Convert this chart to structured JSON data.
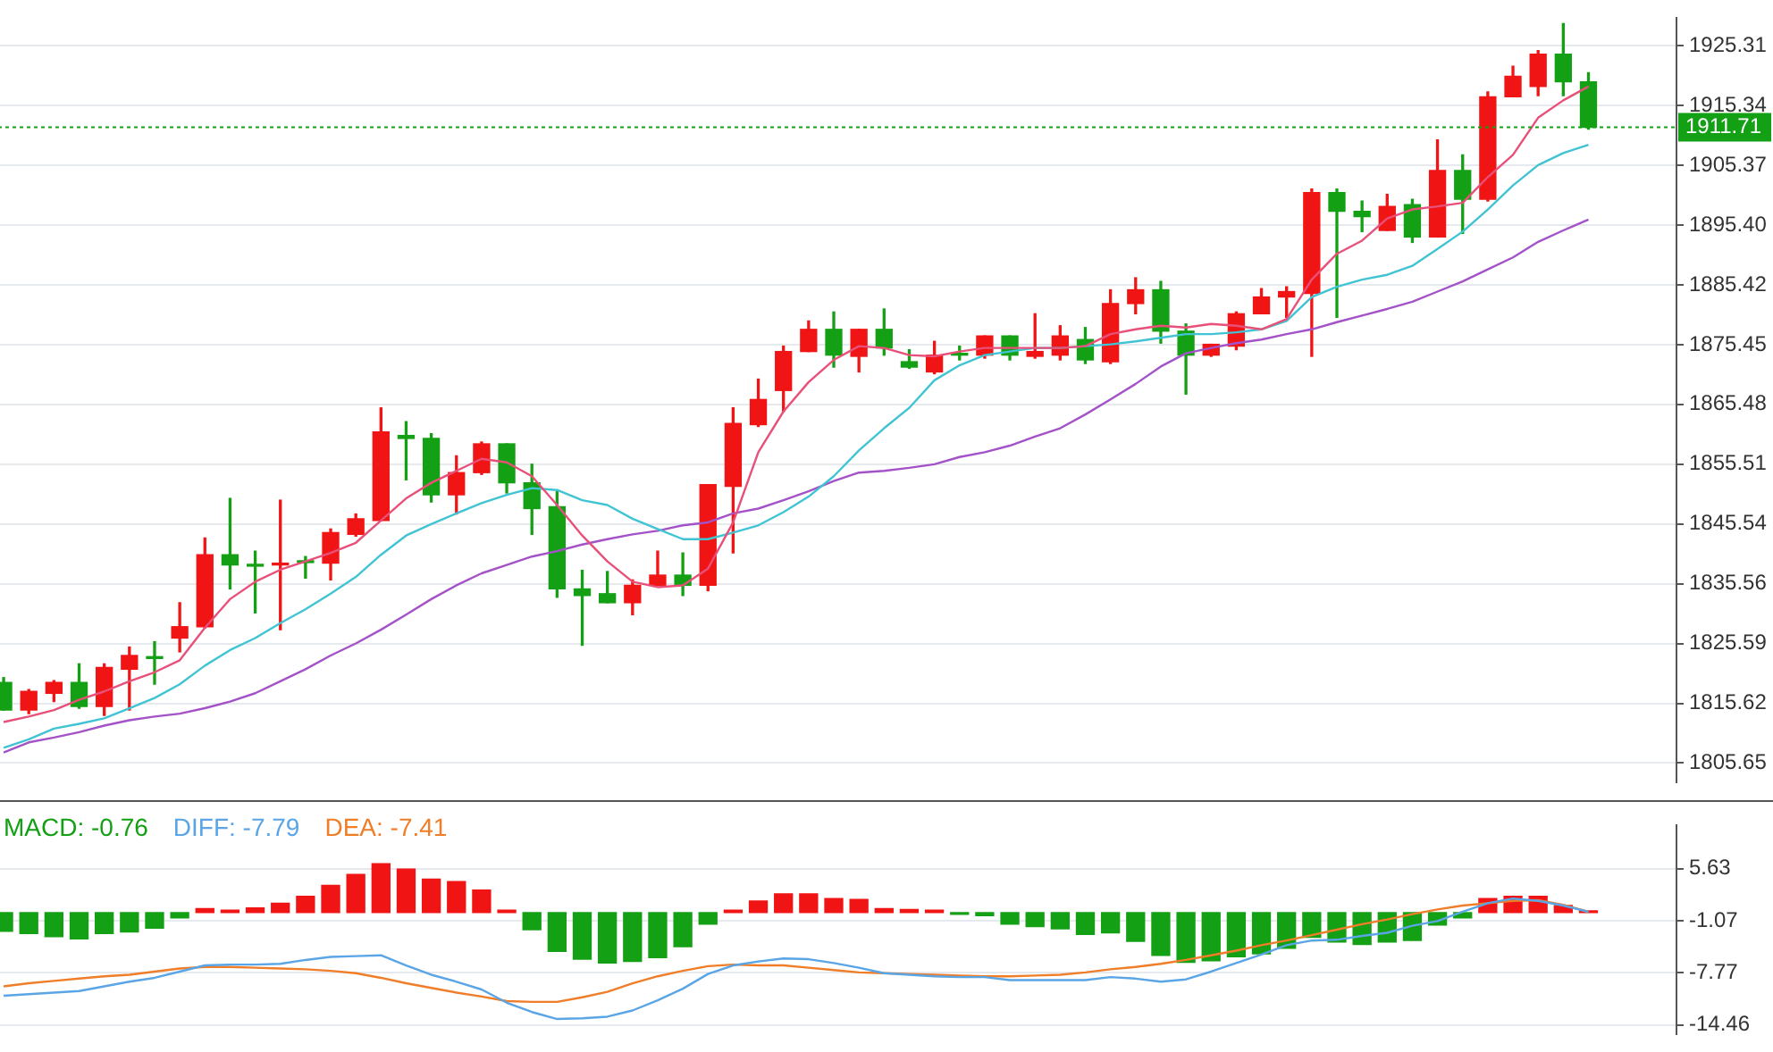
{
  "chart_data": [
    {
      "type": "candlestick",
      "categories": [
        null,
        null,
        null,
        null,
        null,
        null,
        null,
        null,
        null,
        null,
        null,
        null,
        null,
        null,
        null,
        null,
        null,
        null,
        null,
        null,
        null,
        null,
        null,
        null,
        null,
        null,
        null,
        null,
        null,
        null,
        null,
        null,
        null,
        null,
        null,
        null,
        null,
        null,
        null,
        null,
        null,
        null,
        null,
        null,
        null,
        null,
        null,
        null,
        null,
        null,
        null,
        null,
        null,
        null,
        null,
        null,
        null,
        null,
        null,
        null,
        null,
        null,
        null,
        null,
        null,
        null,
        null
      ],
      "ohlc": [
        [
          1819.1,
          1819.9,
          1814.5,
          1814.5
        ],
        [
          1814.5,
          1817.9,
          1813.9,
          1817.6
        ],
        [
          1817.3,
          1819.4,
          1815.9,
          1819.1
        ],
        [
          1819.1,
          1822.2,
          1814.8,
          1815.1
        ],
        [
          1815.1,
          1822.2,
          1813.6,
          1821.6
        ],
        [
          1821.3,
          1825.0,
          1814.5,
          1823.6
        ],
        [
          1823.4,
          1825.9,
          1818.8,
          1823.1
        ],
        [
          1826.5,
          1832.4,
          1824.2,
          1828.4
        ],
        [
          1828.4,
          1843.2,
          1828.2,
          1840.4
        ],
        [
          1840.4,
          1849.8,
          1834.7,
          1838.7
        ],
        [
          1838.8,
          1841.0,
          1830.7,
          1838.5
        ],
        [
          1838.7,
          1849.5,
          1827.9,
          1839.0
        ],
        [
          1839.4,
          1840.1,
          1836.5,
          1839.1
        ],
        [
          1839.0,
          1844.7,
          1836.2,
          1844.1
        ],
        [
          1843.8,
          1847.2,
          1843.5,
          1846.4
        ],
        [
          1846.1,
          1864.9,
          1846.1,
          1860.9
        ],
        [
          1860.3,
          1862.6,
          1852.9,
          1859.8
        ],
        [
          1859.8,
          1860.6,
          1849.2,
          1850.4
        ],
        [
          1850.4,
          1856.9,
          1847.2,
          1854.1
        ],
        [
          1854.1,
          1859.2,
          1853.8,
          1858.9
        ],
        [
          1858.9,
          1858.9,
          1850.7,
          1852.4
        ],
        [
          1852.4,
          1855.5,
          1843.8,
          1848.1
        ],
        [
          1848.4,
          1850.9,
          1833.3,
          1834.7
        ],
        [
          1834.7,
          1837.8,
          1825.3,
          1833.6
        ],
        [
          1833.9,
          1837.6,
          1832.4,
          1832.4
        ],
        [
          1832.4,
          1836.2,
          1830.4,
          1835.3
        ],
        [
          1835.3,
          1841.0,
          1835.3,
          1837.0
        ],
        [
          1837.0,
          1840.7,
          1833.6,
          1835.3
        ],
        [
          1835.3,
          1852.1,
          1834.4,
          1852.1
        ],
        [
          1851.8,
          1864.9,
          1840.7,
          1862.3
        ],
        [
          1862.1,
          1869.7,
          1861.8,
          1866.3
        ],
        [
          1867.8,
          1875.2,
          1864.3,
          1874.3
        ],
        [
          1874.3,
          1879.4,
          1874.3,
          1878.0
        ],
        [
          1878.0,
          1880.9,
          1871.7,
          1873.7
        ],
        [
          1873.5,
          1878.0,
          1870.9,
          1878.0
        ],
        [
          1878.0,
          1881.4,
          1873.7,
          1874.9
        ],
        [
          1872.6,
          1874.6,
          1871.5,
          1871.7
        ],
        [
          1870.9,
          1876.0,
          1870.6,
          1873.7
        ],
        [
          1874.0,
          1875.2,
          1872.9,
          1873.7
        ],
        [
          1873.7,
          1876.9,
          1873.2,
          1876.9
        ],
        [
          1876.9,
          1876.9,
          1872.9,
          1873.7
        ],
        [
          1873.5,
          1880.6,
          1873.2,
          1874.3
        ],
        [
          1873.7,
          1878.6,
          1872.9,
          1876.9
        ],
        [
          1876.3,
          1878.3,
          1872.3,
          1872.9
        ],
        [
          1872.6,
          1884.6,
          1872.3,
          1882.3
        ],
        [
          1882.3,
          1886.6,
          1880.6,
          1884.6
        ],
        [
          1884.6,
          1886.0,
          1875.7,
          1877.7
        ],
        [
          1877.7,
          1878.9,
          1867.2,
          1873.7
        ],
        [
          1873.7,
          1875.5,
          1873.5,
          1875.5
        ],
        [
          1875.2,
          1880.9,
          1874.6,
          1880.6
        ],
        [
          1880.6,
          1884.8,
          1880.6,
          1883.4
        ],
        [
          1883.4,
          1885.1,
          1880.0,
          1884.3
        ],
        [
          1884.0,
          1901.4,
          1873.5,
          1900.8
        ],
        [
          1900.8,
          1901.4,
          1880.0,
          1897.7
        ],
        [
          1897.7,
          1899.4,
          1894.3,
          1896.8
        ],
        [
          1894.5,
          1900.5,
          1894.5,
          1898.5
        ],
        [
          1898.8,
          1899.7,
          1892.5,
          1893.4
        ],
        [
          1893.4,
          1909.6,
          1893.4,
          1904.5
        ],
        [
          1904.5,
          1907.1,
          1894.0,
          1899.7
        ],
        [
          1899.7,
          1917.6,
          1899.4,
          1916.8
        ],
        [
          1916.8,
          1921.9,
          1916.8,
          1920.2
        ],
        [
          1918.5,
          1924.5,
          1917.0,
          1923.9
        ],
        [
          1923.9,
          1929.0,
          1917.0,
          1919.3
        ],
        [
          1919.3,
          1920.8,
          1911.4,
          1911.7
        ],
        null,
        null,
        null
      ],
      "colors": [
        "#14a014",
        "#f01414",
        "#f01414",
        "#14a014",
        "#f01414",
        "#f01414",
        "#14a014",
        "#f01414",
        "#f01414",
        "#14a014",
        "#14a014",
        "#f01414",
        "#14a014",
        "#f01414",
        "#f01414",
        "#f01414",
        "#14a014",
        "#14a014",
        "#f01414",
        "#f01414",
        "#14a014",
        "#14a014",
        "#14a014",
        "#14a014",
        "#14a014",
        "#f01414",
        "#f01414",
        "#14a014",
        "#f01414",
        "#f01414",
        "#f01414",
        "#f01414",
        "#f01414",
        "#14a014",
        "#f01414",
        "#14a014",
        "#14a014",
        "#f01414",
        "#14a014",
        "#f01414",
        "#14a014",
        "#f01414",
        "#f01414",
        "#14a014",
        "#f01414",
        "#f01414",
        "#14a014",
        "#14a014",
        "#f01414",
        "#f01414",
        "#f01414",
        "#f01414",
        "#f01414",
        "#14a014",
        "#14a014",
        "#f01414",
        "#14a014",
        "#f01414",
        "#14a014",
        "#f01414",
        "#f01414",
        "#f01414",
        "#14a014",
        "#14a014",
        null,
        null,
        null
      ],
      "series": [
        {
          "type": "line",
          "color": "#e8507a",
          "values": [
            1812.5,
            1813.4,
            1814.5,
            1816.2,
            1817.6,
            1819.3,
            1820.8,
            1822.8,
            1828.2,
            1833.0,
            1835.9,
            1837.9,
            1839.3,
            1840.7,
            1842.4,
            1846.1,
            1849.8,
            1852.4,
            1854.4,
            1856.4,
            1855.8,
            1853.5,
            1848.7,
            1843.6,
            1839.3,
            1835.9,
            1835.0,
            1835.3,
            1838.1,
            1845.8,
            1857.5,
            1864.3,
            1869.2,
            1872.9,
            1875.2,
            1874.9,
            1873.7,
            1873.5,
            1874.3,
            1874.9,
            1874.9,
            1874.9,
            1874.9,
            1875.2,
            1877.2,
            1878.0,
            1878.6,
            1878.3,
            1878.9,
            1878.6,
            1878.0,
            1879.7,
            1886.3,
            1890.6,
            1892.8,
            1896.5,
            1898.0,
            1898.5,
            1899.1,
            1903.4,
            1907.1,
            1913.3,
            1916.2,
            1918.5,
            null,
            null,
            null
          ]
        },
        {
          "type": "line",
          "color": "#40c4d4",
          "values": [
            1808.2,
            1809.6,
            1811.4,
            1812.2,
            1813.1,
            1814.8,
            1816.5,
            1818.8,
            1821.9,
            1824.5,
            1826.5,
            1829.0,
            1831.3,
            1833.9,
            1836.7,
            1840.4,
            1843.6,
            1845.5,
            1847.3,
            1849.0,
            1850.4,
            1851.5,
            1851.2,
            1849.5,
            1848.7,
            1846.4,
            1844.7,
            1843.0,
            1843.0,
            1844.1,
            1845.3,
            1847.5,
            1850.1,
            1853.5,
            1857.8,
            1861.5,
            1864.9,
            1869.5,
            1872.0,
            1873.7,
            1874.3,
            1874.9,
            1874.9,
            1875.2,
            1875.5,
            1876.0,
            1876.6,
            1877.2,
            1877.2,
            1877.5,
            1878.0,
            1879.4,
            1883.4,
            1885.1,
            1886.3,
            1887.1,
            1888.6,
            1891.4,
            1894.3,
            1898.0,
            1902.0,
            1905.4,
            1907.4,
            1908.8,
            null,
            null,
            null
          ]
        },
        {
          "type": "line",
          "color": "#a452c8",
          "values": [
            1807.4,
            1809.1,
            1809.9,
            1810.8,
            1811.9,
            1812.8,
            1813.4,
            1813.9,
            1814.8,
            1815.9,
            1817.3,
            1819.3,
            1821.3,
            1823.6,
            1825.6,
            1827.9,
            1830.4,
            1833.0,
            1835.3,
            1837.3,
            1838.7,
            1840.1,
            1841.0,
            1842.1,
            1843.0,
            1843.8,
            1844.4,
            1845.3,
            1845.8,
            1847.3,
            1848.1,
            1849.5,
            1851.0,
            1852.7,
            1854.1,
            1854.4,
            1854.9,
            1855.5,
            1856.7,
            1857.5,
            1858.6,
            1860.1,
            1861.5,
            1863.8,
            1866.3,
            1868.9,
            1871.8,
            1874.0,
            1874.9,
            1875.7,
            1876.3,
            1877.2,
            1878.0,
            1879.2,
            1880.3,
            1881.4,
            1882.6,
            1884.3,
            1886.0,
            1888.0,
            1890.0,
            1892.6,
            1894.5,
            1896.3,
            null,
            null,
            null
          ]
        }
      ],
      "ylim": [
        1802.5,
        1929.9
      ],
      "yticks": [
        1805.65,
        1815.62,
        1825.59,
        1835.56,
        1845.54,
        1855.51,
        1865.48,
        1875.45,
        1885.42,
        {
          "value": 1895.4,
          "label": "1895.40"
        },
        1905.37,
        1915.34,
        1925.31
      ],
      "grid": "y",
      "legend": false,
      "marker": "none",
      "ref_lines": [
        {
          "axis": "y",
          "value": 1911.71,
          "label": "1911.71",
          "color": "#14a014",
          "line_style": "dotted"
        }
      ]
    },
    {
      "type": "bar",
      "categories": [
        null,
        null,
        null,
        null,
        null,
        null,
        null,
        null,
        null,
        null,
        null,
        null,
        null,
        null,
        null,
        null,
        null,
        null,
        null,
        null,
        null,
        null,
        null,
        null,
        null,
        null,
        null,
        null,
        null,
        null,
        null,
        null,
        null,
        null,
        null,
        null,
        null,
        null,
        null,
        null,
        null,
        null,
        null,
        null,
        null,
        null,
        null,
        null,
        null,
        null,
        null,
        null,
        null,
        null,
        null,
        null,
        null,
        null,
        null,
        null,
        null,
        null,
        null,
        null,
        null,
        null,
        null
      ],
      "series": [
        {
          "type": "bar",
          "name": "MACD: -0.76",
          "values": [
            -2.4,
            -2.7,
            -3.1,
            -3.4,
            -2.7,
            -2.5,
            -2.0,
            -0.7,
            0.5,
            0.3,
            0.6,
            1.2,
            2.1,
            3.5,
            4.9,
            6.3,
            5.6,
            4.3,
            4.0,
            2.9,
            0.3,
            -2.2,
            -5.0,
            -6.0,
            -6.5,
            -6.3,
            -5.8,
            -4.4,
            -1.5,
            0.3,
            1.5,
            2.4,
            2.4,
            1.8,
            1.7,
            0.5,
            0.4,
            0.3,
            -0.1,
            -0.4,
            -1.5,
            -1.8,
            -2.1,
            -2.8,
            -2.6,
            -3.7,
            -5.5,
            -6.4,
            -6.2,
            -5.7,
            -5.3,
            -4.6,
            -3.2,
            -3.8,
            -4.1,
            -3.8,
            -3.6,
            -1.6,
            -0.7,
            1.8,
            2.1,
            2.1,
            0.9,
            0.1,
            null,
            null,
            null
          ],
          "colors": [
            "#14a014",
            "#14a014",
            "#14a014",
            "#14a014",
            "#14a014",
            "#14a014",
            "#14a014",
            "#14a014",
            "#f01414",
            "#f01414",
            "#f01414",
            "#f01414",
            "#f01414",
            "#f01414",
            "#f01414",
            "#f01414",
            "#f01414",
            "#f01414",
            "#f01414",
            "#f01414",
            "#f01414",
            "#14a014",
            "#14a014",
            "#14a014",
            "#14a014",
            "#14a014",
            "#14a014",
            "#14a014",
            "#14a014",
            "#f01414",
            "#f01414",
            "#f01414",
            "#f01414",
            "#f01414",
            "#f01414",
            "#f01414",
            "#f01414",
            "#f01414",
            "#14a014",
            "#14a014",
            "#14a014",
            "#14a014",
            "#14a014",
            "#14a014",
            "#14a014",
            "#14a014",
            "#14a014",
            "#14a014",
            "#14a014",
            "#14a014",
            "#14a014",
            "#14a014",
            "#14a014",
            "#14a014",
            "#14a014",
            "#14a014",
            "#14a014",
            "#14a014",
            "#14a014",
            "#f01414",
            "#f01414",
            "#f01414",
            "#f01414",
            "#f01414",
            null,
            null,
            null
          ]
        },
        {
          "type": "line",
          "name": "DIFF: -7.79",
          "color": "#5aa5e6",
          "values": [
            -10.7,
            -10.5,
            -10.3,
            -10.1,
            -9.5,
            -8.9,
            -8.4,
            -7.6,
            -6.8,
            -6.7,
            -6.7,
            -6.6,
            -6.1,
            -5.7,
            -5.6,
            -5.5,
            -6.8,
            -8.0,
            -8.9,
            -9.9,
            -11.6,
            -12.8,
            -13.7,
            -13.6,
            -13.4,
            -12.6,
            -11.3,
            -9.8,
            -7.9,
            -6.8,
            -6.3,
            -5.9,
            -6.0,
            -6.5,
            -7.1,
            -7.8,
            -8.0,
            -8.2,
            -8.3,
            -8.3,
            -8.7,
            -8.7,
            -8.7,
            -8.7,
            -8.3,
            -8.5,
            -8.9,
            -8.6,
            -7.6,
            -6.5,
            -5.4,
            -4.2,
            -3.6,
            -3.5,
            -3.0,
            -2.6,
            -1.7,
            -1.1,
            0.1,
            1.2,
            1.8,
            1.5,
            0.9,
            0.1,
            null,
            null,
            null
          ]
        },
        {
          "type": "line",
          "name": "DEA: -7.41",
          "color": "#f07d28",
          "values": [
            -9.5,
            -9.1,
            -8.8,
            -8.5,
            -8.2,
            -8.0,
            -7.6,
            -7.2,
            -7.0,
            -7.0,
            -7.1,
            -7.2,
            -7.3,
            -7.5,
            -7.8,
            -8.4,
            -9.1,
            -9.7,
            -10.3,
            -10.8,
            -11.4,
            -11.5,
            -11.5,
            -10.9,
            -10.2,
            -9.1,
            -8.2,
            -7.5,
            -6.9,
            -6.7,
            -6.8,
            -6.8,
            -7.1,
            -7.4,
            -7.7,
            -7.8,
            -7.9,
            -8.0,
            -8.1,
            -8.2,
            -8.2,
            -8.1,
            -8.0,
            -7.7,
            -7.3,
            -7.0,
            -6.6,
            -6.1,
            -5.5,
            -4.9,
            -4.2,
            -3.6,
            -2.9,
            -2.2,
            -1.5,
            -0.9,
            -0.2,
            0.4,
            0.9,
            1.2,
            1.5,
            1.6,
            1.0,
            0.1,
            null,
            null,
            null
          ]
        }
      ],
      "ylim": [
        -15.6,
        11.2
      ],
      "yticks": [
        5.63,
        -1.07,
        -7.77,
        -14.46
      ],
      "grid": "y",
      "legend": "top left",
      "marker": "none"
    }
  ]
}
